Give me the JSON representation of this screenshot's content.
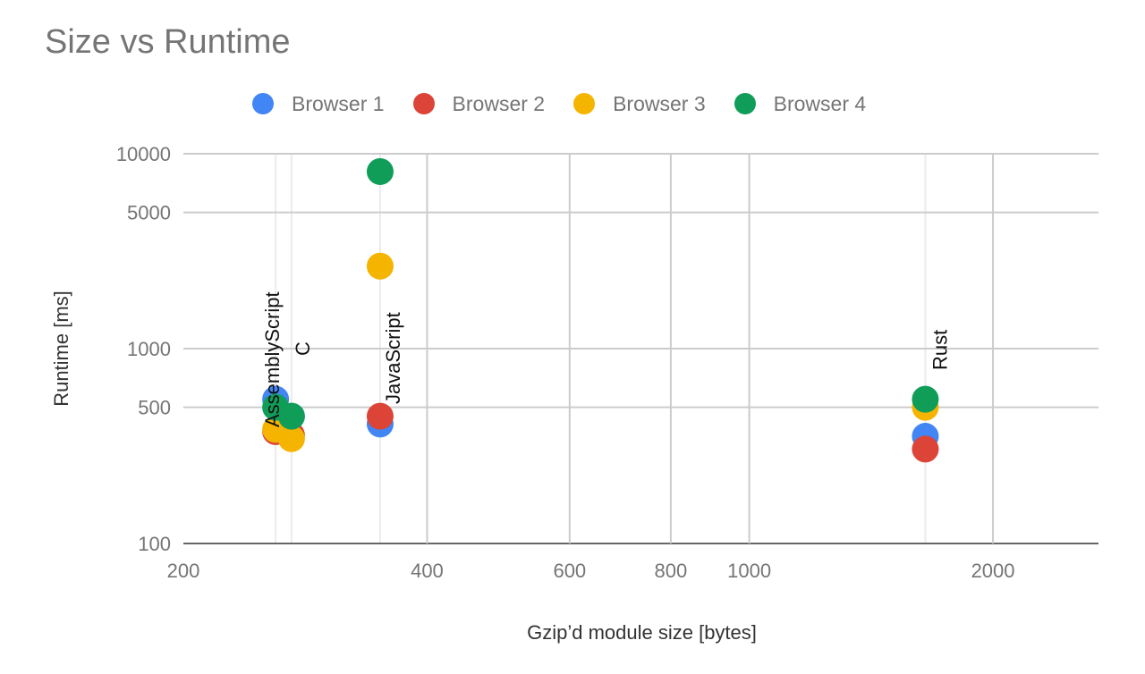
{
  "chart_data": {
    "type": "scatter",
    "title": "Size vs Runtime",
    "xlabel": "Gzip’d module size [bytes]",
    "ylabel": "Runtime [ms]",
    "x_scale": "log",
    "y_scale": "log",
    "xlim": [
      200,
      2700
    ],
    "ylim": [
      100,
      10000
    ],
    "x_ticks": [
      200,
      400,
      600,
      800,
      1000,
      2000
    ],
    "x_tick_labels": [
      "200",
      "400",
      "600",
      "800",
      "1000",
      "2000"
    ],
    "y_ticks": [
      100,
      500,
      1000,
      5000,
      10000
    ],
    "y_tick_labels": [
      "100",
      "500",
      "1000",
      "5000",
      "10000"
    ],
    "grid": true,
    "legend_position": "top",
    "series": [
      {
        "name": "Browser 1",
        "color": "#4285f4",
        "points": [
          {
            "x": 260,
            "y": 550
          },
          {
            "x": 272,
            "y": 450
          },
          {
            "x": 350,
            "y": 410
          },
          {
            "x": 1650,
            "y": 355
          }
        ]
      },
      {
        "name": "Browser 2",
        "color": "#db4437",
        "points": [
          {
            "x": 260,
            "y": 375
          },
          {
            "x": 272,
            "y": 360
          },
          {
            "x": 350,
            "y": 450
          },
          {
            "x": 1650,
            "y": 305
          }
        ]
      },
      {
        "name": "Browser 3",
        "color": "#f4b400",
        "points": [
          {
            "x": 260,
            "y": 385
          },
          {
            "x": 272,
            "y": 345
          },
          {
            "x": 350,
            "y": 2650
          },
          {
            "x": 1650,
            "y": 500
          }
        ]
      },
      {
        "name": "Browser 4",
        "color": "#0f9d58",
        "points": [
          {
            "x": 260,
            "y": 500
          },
          {
            "x": 272,
            "y": 450
          },
          {
            "x": 350,
            "y": 8100
          },
          {
            "x": 1650,
            "y": 550
          }
        ]
      }
    ],
    "annotations": [
      {
        "text": "AssemblyScript",
        "x": 260,
        "y": 1000
      },
      {
        "text": "C",
        "x": 272,
        "y": 1000
      },
      {
        "text": "JavaScript",
        "x": 350,
        "y": 1000
      },
      {
        "text": "Rust",
        "x": 1650,
        "y": 1000
      }
    ],
    "annotation_x_lines": [
      260,
      272,
      350,
      1650
    ]
  }
}
